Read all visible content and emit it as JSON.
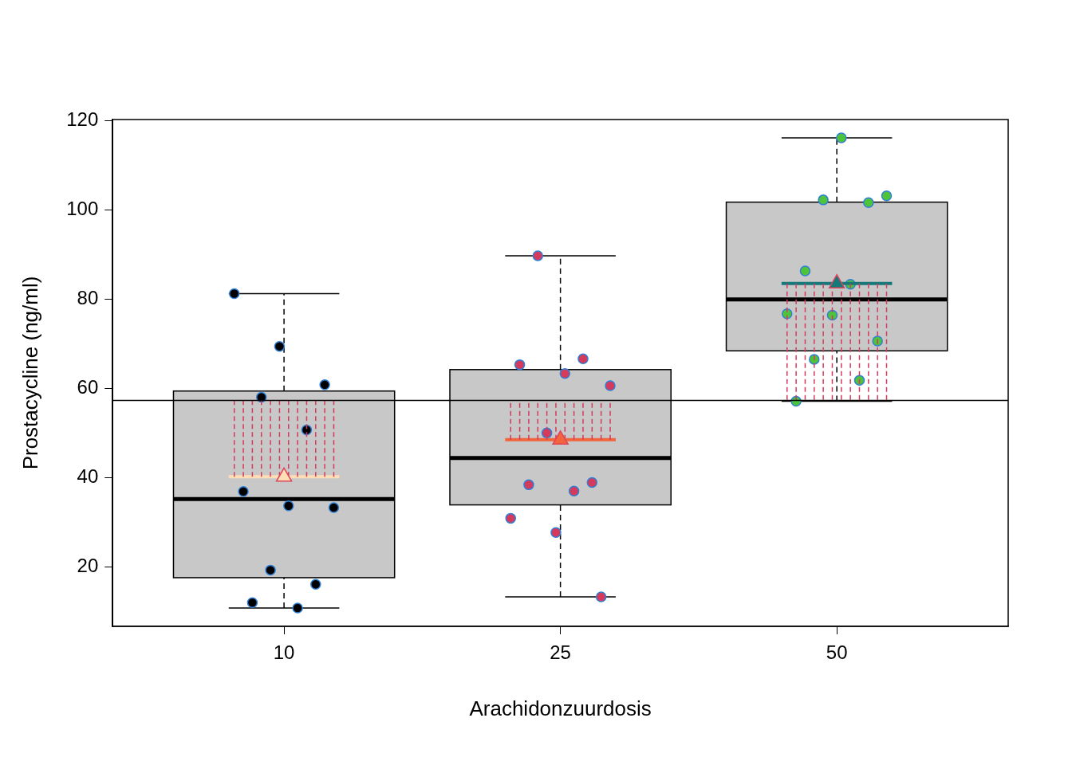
{
  "chart_data": {
    "type": "boxplot",
    "x_label": "Arachidonzuurdosis",
    "y_label": "Prostacycline (ng/ml)",
    "categories": [
      "10",
      "25",
      "50"
    ],
    "ylim": [
      6.7,
      120.2
    ],
    "yticks": [
      20,
      40,
      60,
      80,
      100,
      120
    ],
    "boxes": [
      {
        "min": 10.8,
        "q1": 17.6,
        "median": 35.2,
        "q3": 59.4,
        "max": 81.2
      },
      {
        "min": 13.3,
        "q1": 33.9,
        "median": 44.4,
        "q3": 64.2,
        "max": 89.7
      },
      {
        "min": 57.1,
        "q1": 68.4,
        "median": 79.9,
        "q3": 101.7,
        "max": 116.1
      }
    ],
    "points": {
      "values": [
        [
          81.2,
          69.4,
          60.8,
          58.0,
          50.7,
          36.9,
          33.7,
          33.3,
          19.3,
          16.1,
          12.0,
          10.8
        ],
        [
          89.7,
          66.6,
          65.3,
          63.3,
          60.6,
          50.0,
          38.9,
          38.4,
          37.0,
          30.9,
          27.7,
          13.3
        ],
        [
          116.1,
          103.1,
          102.2,
          101.6,
          86.3,
          83.3,
          76.7,
          76.4,
          70.6,
          66.5,
          61.8,
          57.1
        ]
      ],
      "colors": [
        "#000000",
        "#D43A5C",
        "#4DC43A"
      ],
      "marker": "circle"
    },
    "means": {
      "values": [
        40.2,
        48.5,
        83.5
      ],
      "colors": [
        "#FFDDB5",
        "#F2643C",
        "#17787A"
      ],
      "marker": "triangle"
    },
    "grand_mean": {
      "value": 57.3,
      "color": "#000000"
    },
    "residuals": {
      "color": "#D43A5C",
      "line_style": "dashed"
    }
  }
}
